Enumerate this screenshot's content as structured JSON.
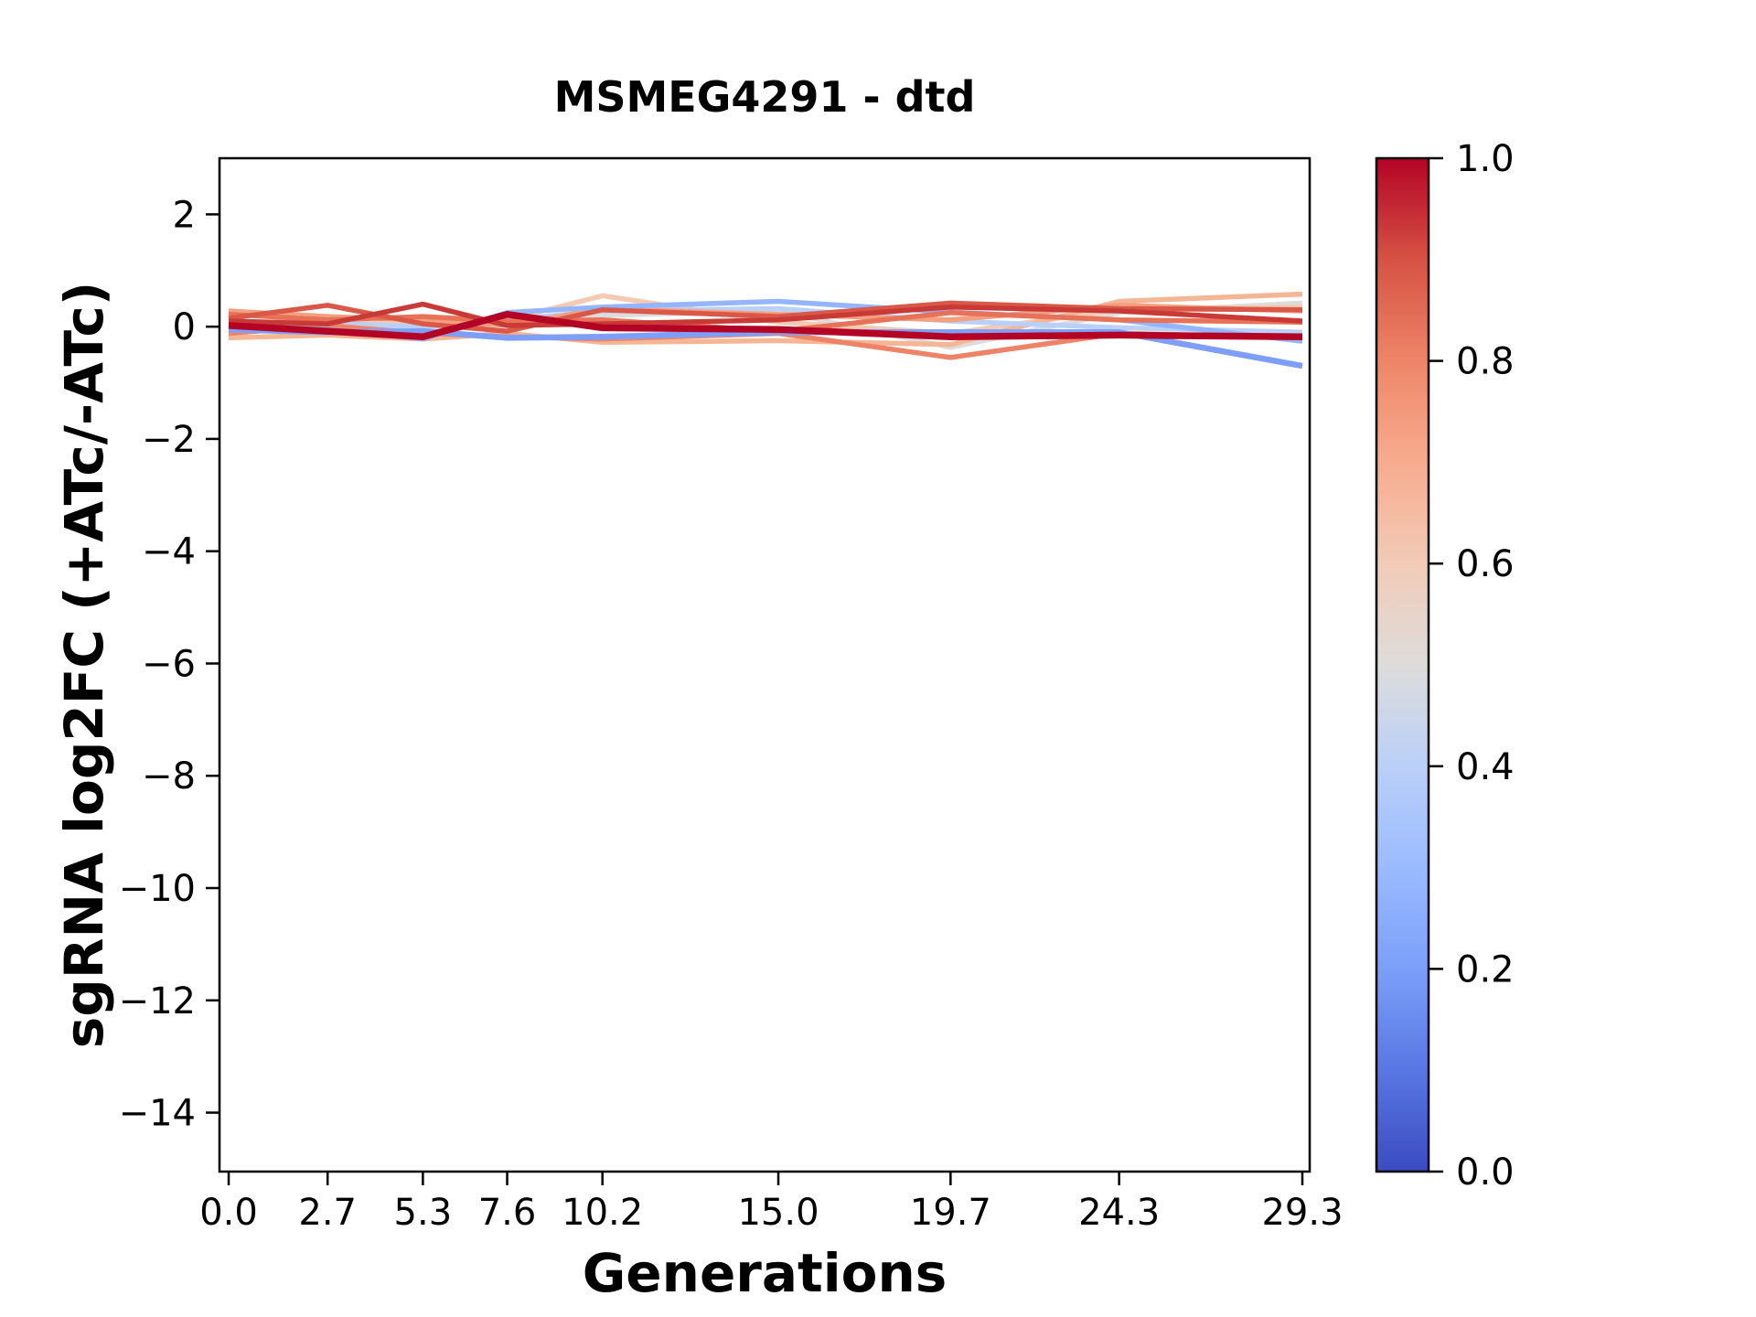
{
  "figure": {
    "title": "MSMEG4291 - dtd",
    "xlabel": "Generations",
    "ylabel": "sgRNA log2FC (+ATc/-ATc)",
    "background_color": "#ffffff",
    "spine_color": "#000000"
  },
  "chart_data": {
    "type": "line",
    "title": "MSMEG4291 - dtd",
    "xlabel": "Generations",
    "ylabel": "sgRNA log2FC (+ATc/-ATc)",
    "grid": false,
    "legend": "none (colorbar encodes series value)",
    "xlim": [
      -0.25,
      29.5
    ],
    "ylim": [
      -15.05,
      3.0
    ],
    "x": [
      0.0,
      2.7,
      5.3,
      7.6,
      10.2,
      15.0,
      19.7,
      24.3,
      29.3
    ],
    "x_tick_labels": [
      "0.0",
      "2.7",
      "5.3",
      "7.6",
      "10.2",
      "15.0",
      "19.7",
      "24.3",
      "29.3"
    ],
    "y_ticks": [
      2,
      0,
      -2,
      -4,
      -6,
      -8,
      -10,
      -12,
      -14
    ],
    "y_tick_labels": [
      "2",
      "0",
      "−2",
      "−4",
      "−6",
      "−8",
      "−10",
      "−12",
      "−14"
    ],
    "series": [
      {
        "colormap_value": 0.5,
        "color": "#dddcdb",
        "line_width": 5.5,
        "values": [
          0.05,
          0.12,
          -0.05,
          0.08,
          0.2,
          0.28,
          -0.37,
          0.25,
          0.42
        ]
      },
      {
        "colormap_value": 0.58,
        "color": "#f4cbb2",
        "line_width": 5.5,
        "values": [
          0.08,
          0.02,
          0.1,
          0.12,
          0.55,
          0.08,
          -0.12,
          0.3,
          0.35
        ]
      },
      {
        "colormap_value": 0.65,
        "color": "#f5b696",
        "line_width": 5.5,
        "values": [
          -0.2,
          -0.15,
          -0.22,
          -0.12,
          -0.28,
          -0.25,
          -0.32,
          0.45,
          0.58
        ]
      },
      {
        "colormap_value": 0.4,
        "color": "#bad0f8",
        "line_width": 5.5,
        "values": [
          0.0,
          0.06,
          0.0,
          0.12,
          0.28,
          0.32,
          0.1,
          -0.02,
          -0.1
        ]
      },
      {
        "colormap_value": 0.72,
        "color": "#f49f80",
        "line_width": 5.5,
        "values": [
          0.28,
          0.18,
          0.12,
          0.02,
          0.32,
          0.22,
          0.12,
          0.38,
          0.28
        ]
      },
      {
        "colormap_value": 0.78,
        "color": "#ee8467",
        "line_width": 5.5,
        "values": [
          -0.12,
          0.02,
          -0.12,
          -0.18,
          -0.22,
          -0.12,
          -0.55,
          -0.12,
          -0.2
        ]
      },
      {
        "colormap_value": 0.3,
        "color": "#94b5ff",
        "line_width": 5.5,
        "values": [
          0.02,
          -0.05,
          -0.22,
          0.25,
          0.35,
          0.45,
          0.26,
          0.12,
          -0.26
        ]
      },
      {
        "colormap_value": 0.22,
        "color": "#7e9ff9",
        "line_width": 6.5,
        "values": [
          -0.05,
          -0.1,
          -0.08,
          -0.2,
          -0.18,
          -0.1,
          -0.1,
          -0.1,
          -0.7
        ]
      },
      {
        "colormap_value": 0.82,
        "color": "#e77257",
        "line_width": 5.5,
        "values": [
          0.22,
          0.12,
          0.18,
          0.1,
          0.12,
          -0.08,
          0.25,
          0.12,
          0.08
        ]
      },
      {
        "colormap_value": 0.88,
        "color": "#d95847",
        "line_width": 5.5,
        "values": [
          0.15,
          0.38,
          0.05,
          -0.08,
          0.3,
          0.18,
          0.42,
          0.32,
          0.3
        ]
      },
      {
        "colormap_value": 0.93,
        "color": "#c93a37",
        "line_width": 5.5,
        "values": [
          0.1,
          0.05,
          0.4,
          0.02,
          0.05,
          0.12,
          0.35,
          0.28,
          0.1
        ]
      },
      {
        "colormap_value": 1.0,
        "color": "#b40426",
        "line_width": 7.5,
        "values": [
          0.02,
          -0.08,
          -0.18,
          0.22,
          -0.02,
          -0.05,
          -0.18,
          -0.15,
          -0.18
        ]
      }
    ],
    "colorbar": {
      "min": 0.0,
      "max": 1.0,
      "tick_values": [
        1.0,
        0.8,
        0.6,
        0.4,
        0.2,
        0.0
      ],
      "tick_labels": [
        "1.0",
        "0.8",
        "0.6",
        "0.4",
        "0.2",
        "0.0"
      ],
      "colormap": "coolwarm",
      "stops_top_to_bottom": [
        {
          "offset": 0.0,
          "color": "#b40426"
        },
        {
          "offset": 0.1,
          "color": "#d65244"
        },
        {
          "offset": 0.2,
          "color": "#ee8568"
        },
        {
          "offset": 0.3,
          "color": "#f7ac8e"
        },
        {
          "offset": 0.4,
          "color": "#f2cbb7"
        },
        {
          "offset": 0.5,
          "color": "#dddcdb"
        },
        {
          "offset": 0.6,
          "color": "#bad0f8"
        },
        {
          "offset": 0.7,
          "color": "#9abbff"
        },
        {
          "offset": 0.8,
          "color": "#7b9ff9"
        },
        {
          "offset": 0.9,
          "color": "#5977e3"
        },
        {
          "offset": 1.0,
          "color": "#3b4cc0"
        }
      ]
    }
  }
}
